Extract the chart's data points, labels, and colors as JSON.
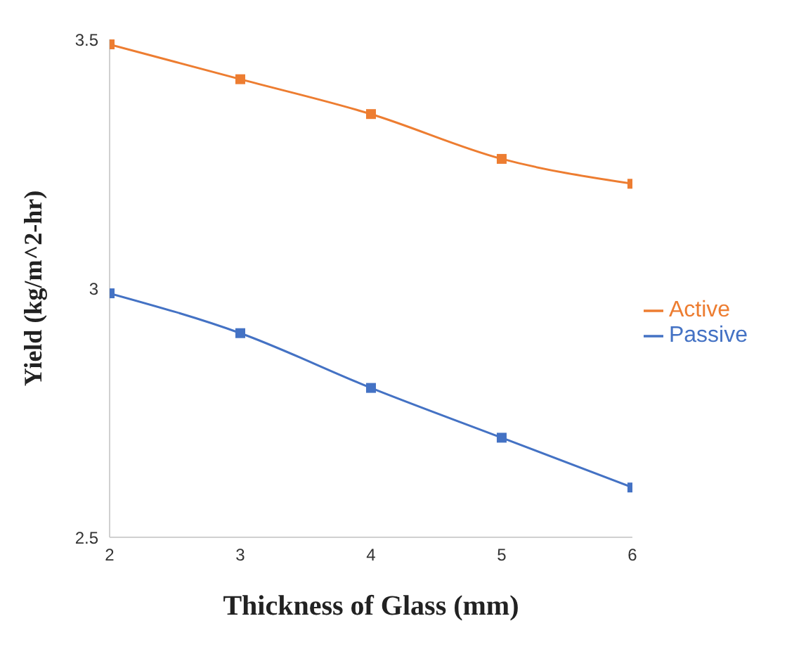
{
  "chart_data": {
    "type": "line",
    "xlabel": "Thickness of Glass (mm)",
    "ylabel": "Yield (kg/m^2-hr)",
    "x": [
      2,
      3,
      4,
      5,
      6
    ],
    "series": [
      {
        "name": "Passive",
        "color": "#4472c4",
        "values": [
          2.99,
          2.91,
          2.8,
          2.7,
          2.6
        ]
      },
      {
        "name": "Active",
        "color": "#ed7d31",
        "values": [
          3.49,
          3.42,
          3.35,
          3.26,
          3.21
        ]
      }
    ],
    "xlim": [
      2,
      6
    ],
    "xticks": [
      2,
      3,
      4,
      5,
      6
    ],
    "ylim": [
      2.5,
      3.5
    ],
    "yticks": [
      2.5,
      3,
      3.5
    ],
    "grid": false,
    "legend": "right",
    "marker": "square",
    "line_style": "solid"
  }
}
